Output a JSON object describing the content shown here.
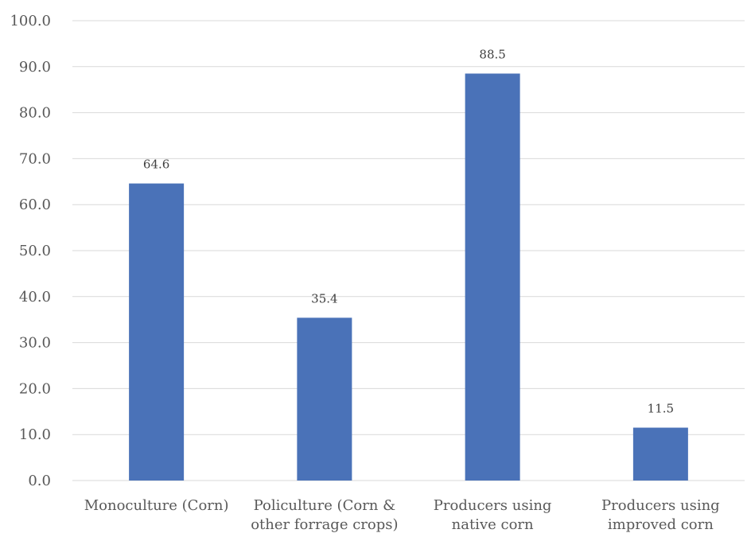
{
  "chart_data": {
    "type": "bar",
    "title": "",
    "xlabel": "",
    "ylabel": "",
    "ylim": [
      0,
      100
    ],
    "ytick_step": 10,
    "ytick_decimals": 1,
    "ytick_labels": [
      "0.0",
      "10.0",
      "20.0",
      "30.0",
      "40.0",
      "50.0",
      "60.0",
      "70.0",
      "80.0",
      "90.0",
      "100.0"
    ],
    "categories": [
      [
        "Monoculture (Corn)"
      ],
      [
        "Policulture (Corn &",
        "other forrage crops)"
      ],
      [
        "Producers using",
        "native corn"
      ],
      [
        "Producers using",
        "improved corn"
      ]
    ],
    "values": [
      64.6,
      35.4,
      88.5,
      11.5
    ],
    "data_labels": [
      "64.6",
      "35.4",
      "88.5",
      "11.5"
    ],
    "bar_color": "#4a72b8",
    "grid": true,
    "legend": "none"
  }
}
